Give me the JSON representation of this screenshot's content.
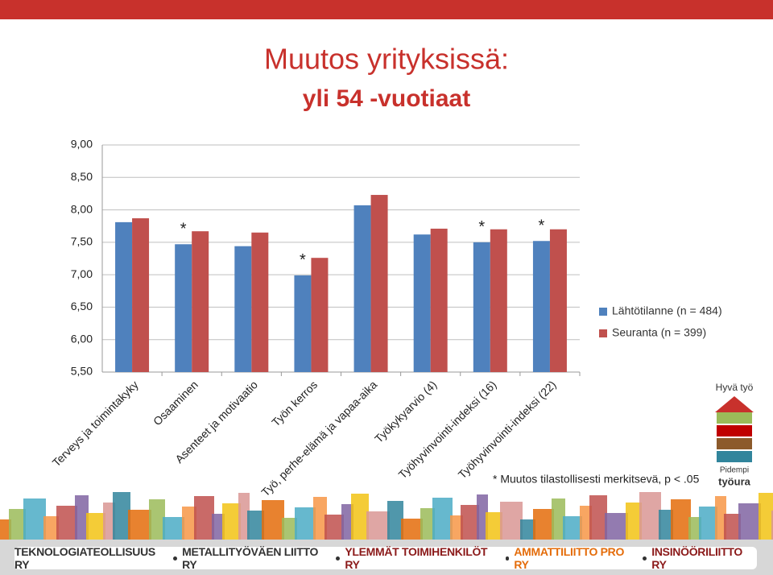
{
  "chart_data": {
    "type": "bar",
    "title": "Muutos yrityksissä:",
    "subtitle": "yli 54 -vuotiaat",
    "categories": [
      "Terveys ja toimintakyky",
      "Osaaminen",
      "Asenteet ja motivaatio",
      "Työn kerros",
      "Työ, perhe-elämä ja vapaa-aika",
      "Työkykyarvio (4)",
      "Työhyvinvointi-indeksi (16)",
      "Työhyvinvointi-indeksi (22)"
    ],
    "series": [
      {
        "name": "Lähtötilanne (n = 484)",
        "color": "#4f81bd",
        "values": [
          7.81,
          7.47,
          7.44,
          6.99,
          8.07,
          7.62,
          7.5,
          7.52
        ]
      },
      {
        "name": "Seuranta (n = 399)",
        "color": "#c0504d",
        "values": [
          7.87,
          7.67,
          7.65,
          7.26,
          8.23,
          7.71,
          7.7,
          7.7
        ]
      }
    ],
    "significance_marks": [
      null,
      "*",
      null,
      "*",
      null,
      null,
      "*",
      "*"
    ],
    "ylim": [
      5.5,
      9.0
    ],
    "yticks": [
      {
        "value": 5.5,
        "label": "5,50"
      },
      {
        "value": 6.0,
        "label": "6,00"
      },
      {
        "value": 6.5,
        "label": "6,50"
      },
      {
        "value": 7.0,
        "label": "7,00"
      },
      {
        "value": 7.5,
        "label": "7,50"
      },
      {
        "value": 8.0,
        "label": "8,00"
      },
      {
        "value": 8.5,
        "label": "8,50"
      },
      {
        "value": 9.0,
        "label": "9,00"
      }
    ],
    "grid": true,
    "legend": "right",
    "footnote": "* Muutos tilastollisesti merkitsevä, p < .05"
  },
  "logo": {
    "top": "Hyvä työ",
    "bottom": [
      "Pidempi",
      "työura"
    ]
  },
  "footer": {
    "organizations": [
      "TEKNOLOGIATEOLLISUUS RY",
      "METALLITYÖVÄEN LIITTO RY",
      "YLEMMÄT TOIMIHENKILÖT RY",
      "AMMATTILIITTO PRO RY",
      "INSINÖÖRILIITTO RY"
    ]
  }
}
